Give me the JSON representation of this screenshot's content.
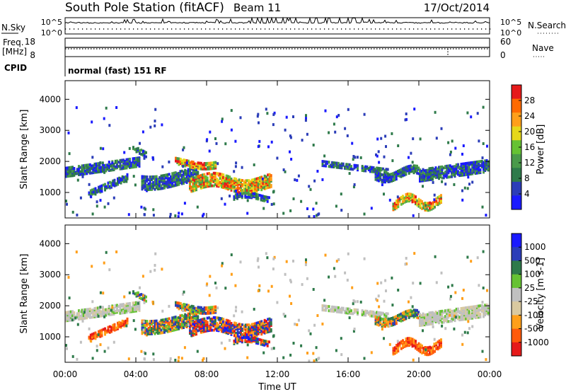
{
  "header": {
    "title": "South Pole Station (fitACF)",
    "beam": "Beam 11",
    "date": "17/Oct/2014"
  },
  "param_panels": {
    "nsky_label": "N.Sky",
    "nsearch_label": "N.Search",
    "freq_label_line1": "Freq.",
    "freq_label_line2": "[MHz]",
    "nave_label": "Nave",
    "cpid_label": "CPID",
    "cpid_text": "normal (fast) 151 RF",
    "noise_ticks_left": [
      "10^5",
      "10^0"
    ],
    "noise_ticks_right": [
      "10^5",
      "10^0"
    ],
    "freq_ticks_left": [
      "18",
      "8"
    ],
    "nave_ticks_right": [
      "60",
      "0"
    ]
  },
  "colors": {
    "power": [
      "#1a1aff",
      "#2b3db8",
      "#2e7a4a",
      "#4a9a4a",
      "#66c233",
      "#e6d81a",
      "#ff9f1a",
      "#ff6a00",
      "#e61a1a"
    ],
    "velocity": [
      "#e61a1a",
      "#ff5a0a",
      "#ff9f1a",
      "#d9c9a0",
      "#c0c0c0",
      "#66c233",
      "#2e7a4a",
      "#2b3db8",
      "#1a1aff"
    ]
  },
  "chart_data": [
    {
      "type": "heatmap",
      "name": "power",
      "xlabel": "",
      "ylabel": "Slant Range [km]",
      "xlim": [
        0,
        24
      ],
      "ylim": [
        180,
        4600
      ],
      "y_ticks": [
        "1000",
        "2000",
        "3000",
        "4000"
      ],
      "colorbar_label": "Power [dB]",
      "colorbar_ticks": [
        "4",
        "8",
        "12",
        "16",
        "20",
        "24",
        "28"
      ]
    },
    {
      "type": "heatmap",
      "name": "velocity",
      "xlabel": "Time UT",
      "ylabel": "Slant Range [km]",
      "xlim": [
        0,
        24
      ],
      "ylim": [
        180,
        4600
      ],
      "x_ticks": [
        "00:00",
        "04:00",
        "08:00",
        "12:00",
        "16:00",
        "20:00",
        "00:00"
      ],
      "y_ticks": [
        "1000",
        "2000",
        "3000",
        "4000"
      ],
      "colorbar_label": "Velocity [m s-1]",
      "colorbar_ticks": [
        "1000",
        "500",
        "100",
        "25",
        "-25",
        "-100",
        "-500",
        "-1000"
      ]
    }
  ]
}
